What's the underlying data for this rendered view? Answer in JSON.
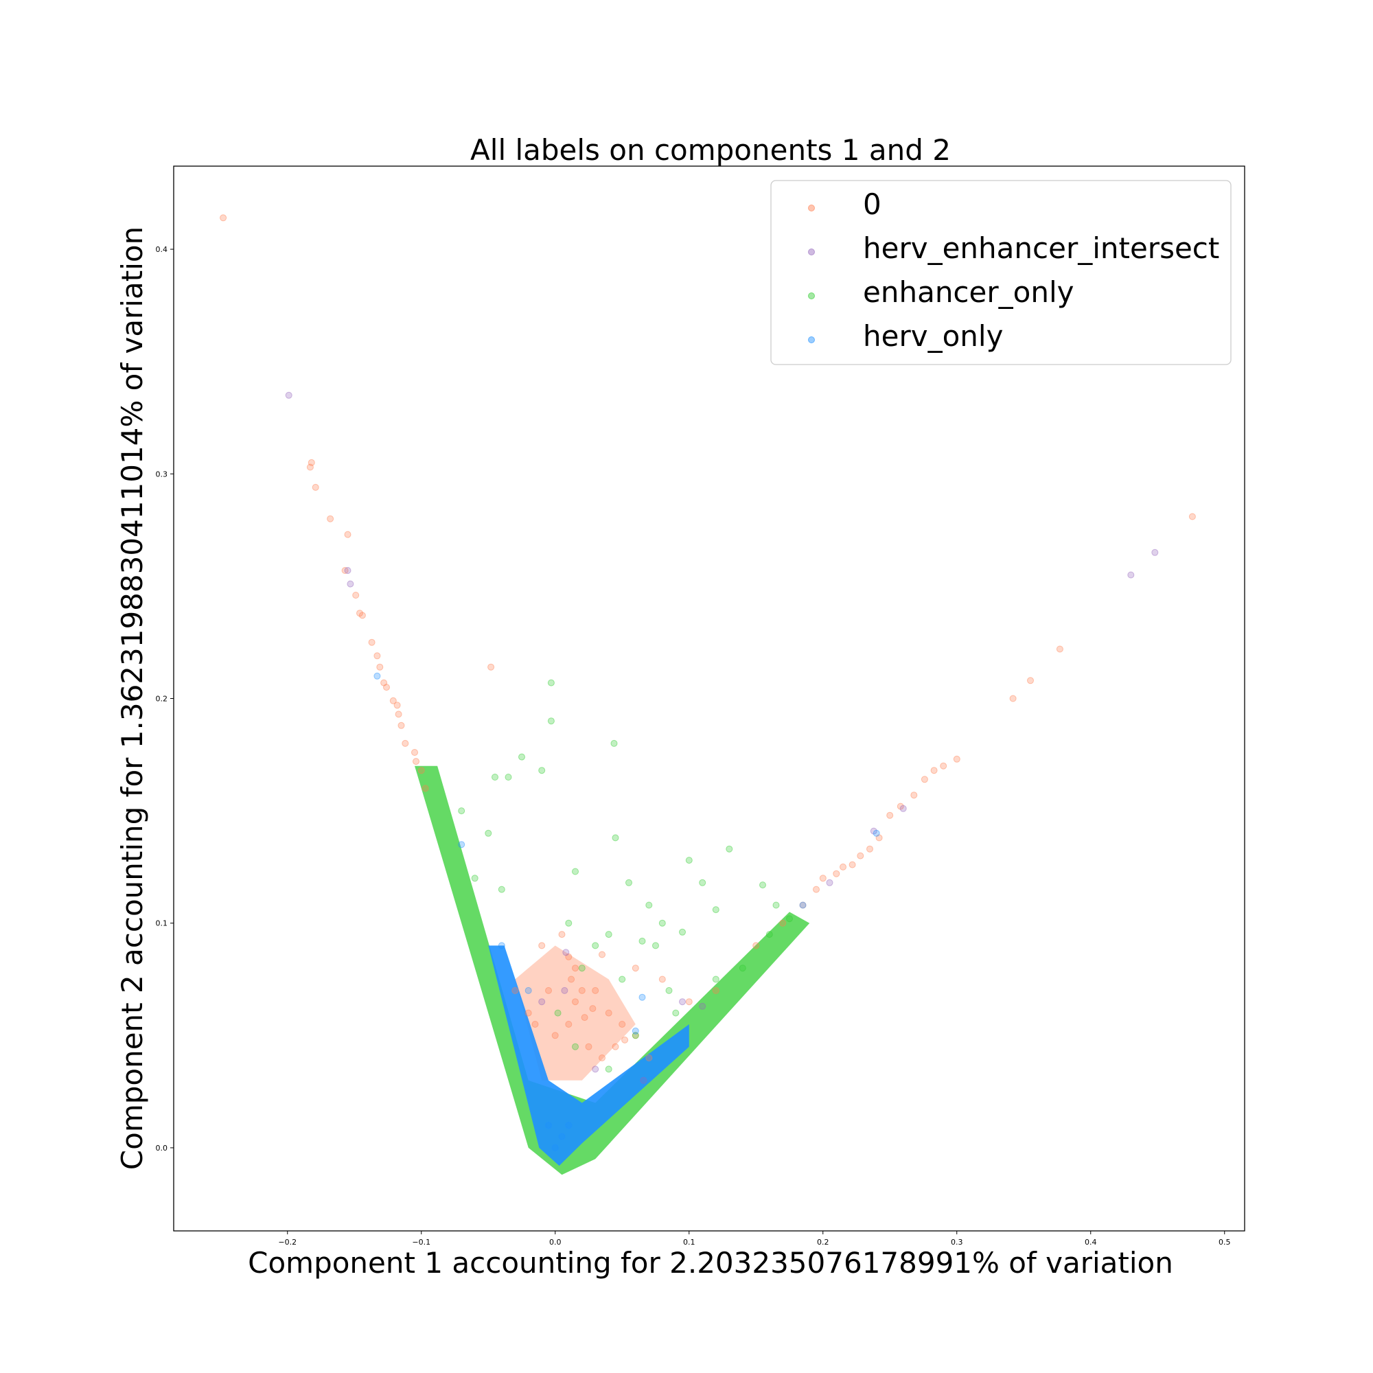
{
  "chart_data": {
    "type": "scatter",
    "title": "All labels on components 1 and 2",
    "xlabel": "Component 1 accounting for 2.203235076178991% of variation",
    "ylabel": "Component 2 accounting for 1.3623198830411014% of variation",
    "xlim": [
      -0.285,
      0.515
    ],
    "ylim": [
      -0.037,
      0.437
    ],
    "xticks": [
      -0.2,
      -0.1,
      0.0,
      0.1,
      0.2,
      0.3,
      0.4,
      0.5
    ],
    "xtick_labels": [
      "−0.2",
      "−0.1",
      "0.0",
      "0.1",
      "0.2",
      "0.3",
      "0.4",
      "0.5"
    ],
    "yticks": [
      0.0,
      0.1,
      0.2,
      0.3,
      0.4
    ],
    "ytick_labels": [
      "0.0",
      "0.1",
      "0.2",
      "0.3",
      "0.4"
    ],
    "grid": false,
    "legend_position": "top-right",
    "marker_alpha": 0.3,
    "series": [
      {
        "name": "0",
        "color": "#FF7F50",
        "points": [
          [
            -0.248,
            0.414
          ],
          [
            -0.182,
            0.305
          ],
          [
            -0.183,
            0.303
          ],
          [
            -0.179,
            0.294
          ],
          [
            -0.168,
            0.28
          ],
          [
            -0.155,
            0.273
          ],
          [
            -0.157,
            0.257
          ],
          [
            -0.149,
            0.246
          ],
          [
            -0.146,
            0.238
          ],
          [
            -0.144,
            0.237
          ],
          [
            -0.137,
            0.225
          ],
          [
            -0.133,
            0.219
          ],
          [
            -0.131,
            0.214
          ],
          [
            -0.128,
            0.207
          ],
          [
            -0.126,
            0.205
          ],
          [
            -0.121,
            0.199
          ],
          [
            -0.118,
            0.197
          ],
          [
            -0.117,
            0.193
          ],
          [
            -0.115,
            0.188
          ],
          [
            -0.112,
            0.18
          ],
          [
            -0.105,
            0.176
          ],
          [
            -0.104,
            0.172
          ],
          [
            -0.1,
            0.168
          ],
          [
            -0.097,
            0.16
          ],
          [
            -0.048,
            0.214
          ],
          [
            0.035,
            0.086
          ],
          [
            -0.01,
            0.09
          ],
          [
            0.005,
            0.095
          ],
          [
            0.01,
            0.085
          ],
          [
            0.015,
            0.08
          ],
          [
            0.02,
            0.07
          ],
          [
            0.03,
            0.07
          ],
          [
            0.04,
            0.06
          ],
          [
            0.05,
            0.055
          ],
          [
            0.06,
            0.05
          ],
          [
            0.07,
            0.04
          ],
          [
            0.06,
            0.08
          ],
          [
            0.08,
            0.075
          ],
          [
            0.1,
            0.065
          ],
          [
            0.12,
            0.07
          ],
          [
            0.15,
            0.09
          ],
          [
            0.17,
            0.1
          ],
          [
            0.185,
            0.108
          ],
          [
            0.195,
            0.115
          ],
          [
            0.2,
            0.12
          ],
          [
            0.21,
            0.122
          ],
          [
            0.215,
            0.125
          ],
          [
            0.222,
            0.126
          ],
          [
            0.228,
            0.13
          ],
          [
            0.235,
            0.133
          ],
          [
            0.242,
            0.138
          ],
          [
            0.25,
            0.148
          ],
          [
            0.258,
            0.152
          ],
          [
            0.268,
            0.157
          ],
          [
            0.276,
            0.164
          ],
          [
            0.283,
            0.168
          ],
          [
            0.29,
            0.17
          ],
          [
            0.3,
            0.173
          ],
          [
            0.342,
            0.2
          ],
          [
            0.355,
            0.208
          ],
          [
            0.377,
            0.222
          ],
          [
            0.476,
            0.281
          ],
          [
            -0.02,
            0.06
          ],
          [
            -0.03,
            0.07
          ],
          [
            0.0,
            0.05
          ],
          [
            0.01,
            0.055
          ],
          [
            0.025,
            0.045
          ],
          [
            0.035,
            0.04
          ],
          [
            0.045,
            0.045
          ],
          [
            -0.005,
            0.07
          ],
          [
            0.015,
            0.065
          ],
          [
            0.022,
            0.058
          ],
          [
            -0.015,
            0.055
          ],
          [
            0.028,
            0.062
          ],
          [
            0.012,
            0.075
          ],
          [
            0.052,
            0.048
          ]
        ]
      },
      {
        "name": "herv_enhancer_intersect",
        "color": "#9467BD",
        "points": [
          [
            -0.199,
            0.335
          ],
          [
            -0.155,
            0.257
          ],
          [
            -0.153,
            0.251
          ],
          [
            0.008,
            0.087
          ],
          [
            0.007,
            0.07
          ],
          [
            0.066,
            0.03
          ],
          [
            0.095,
            0.065
          ],
          [
            0.11,
            0.063
          ],
          [
            0.205,
            0.118
          ],
          [
            0.238,
            0.141
          ],
          [
            0.26,
            0.151
          ],
          [
            0.43,
            0.255
          ],
          [
            0.448,
            0.265
          ],
          [
            -0.01,
            0.065
          ],
          [
            0.03,
            0.035
          ]
        ]
      },
      {
        "name": "enhancer_only",
        "color": "#32CD32",
        "points": [
          [
            -0.003,
            0.207
          ],
          [
            -0.003,
            0.19
          ],
          [
            0.044,
            0.18
          ],
          [
            -0.025,
            0.174
          ],
          [
            -0.035,
            0.165
          ],
          [
            -0.01,
            0.168
          ],
          [
            -0.045,
            0.165
          ],
          [
            -0.07,
            0.15
          ],
          [
            -0.05,
            0.14
          ],
          [
            0.045,
            0.138
          ],
          [
            0.1,
            0.128
          ],
          [
            0.13,
            0.133
          ],
          [
            0.015,
            0.123
          ],
          [
            0.055,
            0.118
          ],
          [
            0.11,
            0.118
          ],
          [
            0.155,
            0.117
          ],
          [
            0.165,
            0.108
          ],
          [
            0.07,
            0.108
          ],
          [
            0.12,
            0.106
          ],
          [
            0.08,
            0.1
          ],
          [
            0.095,
            0.096
          ],
          [
            0.04,
            0.095
          ],
          [
            0.01,
            0.1
          ],
          [
            0.065,
            0.092
          ],
          [
            0.075,
            0.09
          ],
          [
            -0.04,
            0.115
          ],
          [
            -0.06,
            0.12
          ],
          [
            0.03,
            0.09
          ],
          [
            0.02,
            0.08
          ],
          [
            0.05,
            0.075
          ],
          [
            0.085,
            0.07
          ],
          [
            0.14,
            0.08
          ],
          [
            0.16,
            0.095
          ],
          [
            0.175,
            0.102
          ],
          [
            0.002,
            0.06
          ],
          [
            0.015,
            0.045
          ],
          [
            0.04,
            0.035
          ],
          [
            0.06,
            0.05
          ],
          [
            0.09,
            0.06
          ],
          [
            0.12,
            0.075
          ]
        ]
      },
      {
        "name": "herv_only",
        "color": "#1E90FF",
        "points": [
          [
            -0.133,
            0.21
          ],
          [
            -0.07,
            0.135
          ],
          [
            -0.04,
            0.09
          ],
          [
            -0.02,
            0.07
          ],
          [
            0.065,
            0.067
          ],
          [
            0.06,
            0.052
          ],
          [
            0.185,
            0.108
          ],
          [
            0.24,
            0.14
          ],
          [
            0.0,
            0.0
          ],
          [
            0.005,
            0.005
          ],
          [
            0.01,
            0.01
          ],
          [
            -0.005,
            0.01
          ]
        ]
      }
    ]
  }
}
